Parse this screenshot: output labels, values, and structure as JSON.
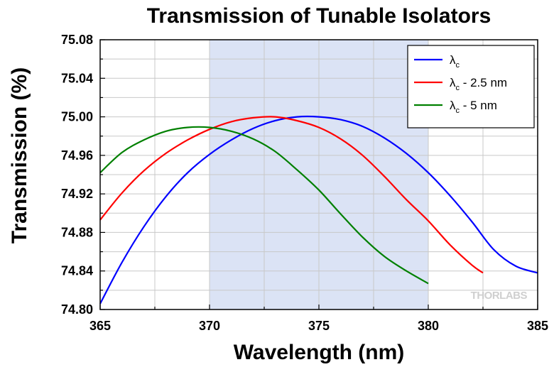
{
  "chart_data": {
    "type": "line",
    "title": "Transmission of Tunable Isolators",
    "xlabel": "Wavelength (nm)",
    "ylabel": "Transmission (%)",
    "xlim": [
      365,
      385
    ],
    "ylim": [
      74.8,
      75.08
    ],
    "x_ticks": [
      "365",
      "370",
      "375",
      "380",
      "385"
    ],
    "y_ticks": [
      "74.80",
      "74.84",
      "74.88",
      "74.92",
      "74.96",
      "75.00",
      "75.04",
      "75.08"
    ],
    "grid": true,
    "shaded_band": {
      "x_start": 370,
      "x_end": 380,
      "color": "#dbe3f5"
    },
    "legend_position": "top-right",
    "series": [
      {
        "name": "λc",
        "name_main": "λ",
        "name_sub": "c",
        "name_suffix": "",
        "color": "#0000ff",
        "x": [
          365,
          366,
          367,
          368,
          369,
          370,
          371,
          372,
          373,
          374,
          375,
          376,
          377,
          378,
          379,
          380,
          381,
          382,
          383,
          384,
          385
        ],
        "y": [
          74.806,
          74.849,
          74.886,
          74.917,
          74.942,
          74.961,
          74.976,
          74.988,
          74.996,
          75.0,
          75.0,
          74.997,
          74.99,
          74.978,
          74.962,
          74.942,
          74.918,
          74.891,
          74.862,
          74.845,
          74.838
        ]
      },
      {
        "name": "λc - 2.5 nm",
        "name_main": "λ",
        "name_sub": "c",
        "name_suffix": " - 2.5 nm",
        "color": "#ff0000",
        "x": [
          365,
          366,
          367,
          368,
          369,
          370,
          371,
          372,
          373,
          374,
          375,
          376,
          377,
          378,
          379,
          380,
          381,
          382,
          382.5
        ],
        "y": [
          74.893,
          74.921,
          74.944,
          74.962,
          74.976,
          74.987,
          74.995,
          74.999,
          75.0,
          74.996,
          74.989,
          74.977,
          74.96,
          74.938,
          74.914,
          74.892,
          74.867,
          74.846,
          74.838
        ]
      },
      {
        "name": "λc - 5 nm",
        "name_main": "λ",
        "name_sub": "c",
        "name_suffix": " - 5 nm",
        "color": "#008000",
        "x": [
          365,
          366,
          367,
          368,
          369,
          370,
          371,
          372,
          373,
          374,
          375,
          376,
          377,
          378,
          379,
          380
        ],
        "y": [
          74.942,
          74.963,
          74.976,
          74.985,
          74.989,
          74.989,
          74.985,
          74.977,
          74.964,
          74.945,
          74.924,
          74.899,
          74.875,
          74.855,
          74.84,
          74.827
        ]
      }
    ]
  },
  "watermark": "THORLABS"
}
